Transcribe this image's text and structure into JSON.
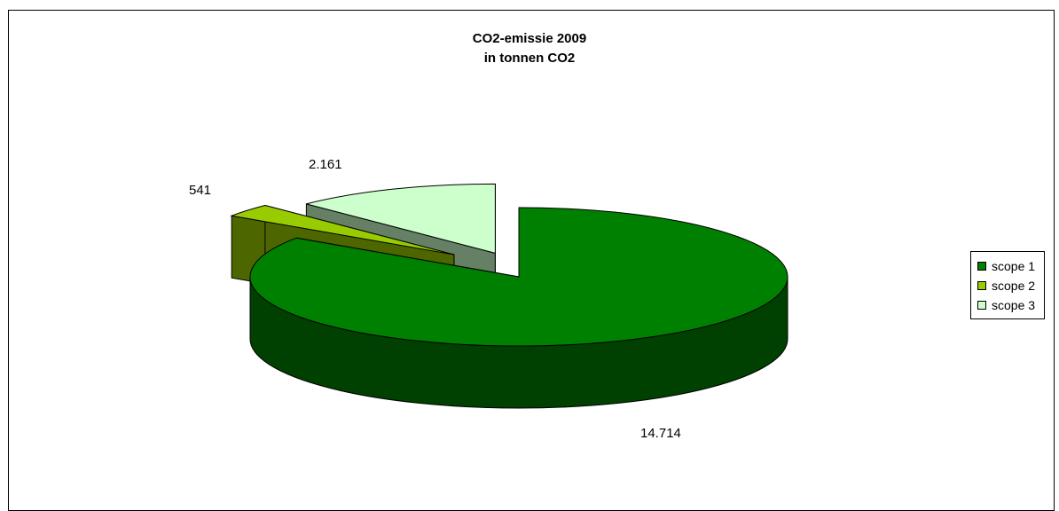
{
  "chart_data": {
    "type": "pie",
    "title": "CO2-emissie 2009",
    "subtitle": "in tonnen CO2",
    "slices": [
      {
        "label": "scope 1",
        "value": 14714,
        "value_label": "14.714",
        "color": "#008000",
        "side_color": "#004000"
      },
      {
        "label": "scope 2",
        "value": 541,
        "value_label": "541",
        "color": "#99cc00",
        "side_color": "#4d6600"
      },
      {
        "label": "scope 3",
        "value": 2161,
        "value_label": "2.161",
        "color": "#ccffcc",
        "side_color": "#668066"
      }
    ],
    "legend_position": "right",
    "style": "3d-exploded"
  }
}
